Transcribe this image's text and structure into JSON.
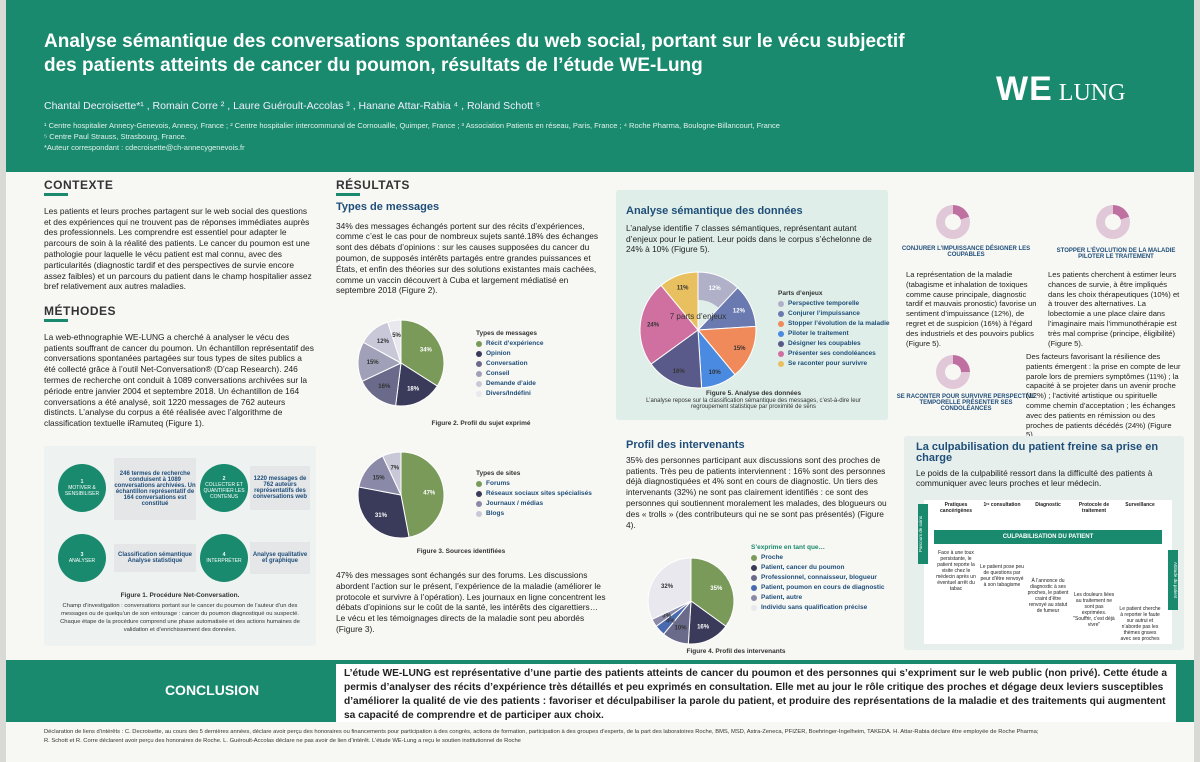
{
  "header": {
    "title_line1": "Analyse sémantique des conversations spontanées du web social, portant sur le vécu subjectif",
    "title_line2": "des patients atteints de cancer du poumon, résultats de l’étude WE-Lung",
    "authors": "Chantal Decroisette*¹ , Romain Corre ² , Laure Guéroult-Accolas ³ , Hanane Attar-Rabia ⁴ , Roland Schott ⁵",
    "affil1": "¹ Centre hospitalier Annecy-Genevois, Annecy, France ; ² Centre hospitalier intercommunal de Cornouaille, Quimper, France ; ³ Association Patients en réseau, Paris, France ; ⁴ Roche Pharma, Boulogne-Billancourt, France",
    "affil2": "⁵ Centre Paul Strauss, Strasbourg, France.",
    "affil3": "*Auteur correspondant : cdecroisette@ch-annecygenevois.fr",
    "logo_we": "WE",
    "logo_lung": "LUNG"
  },
  "contexte": {
    "heading": "CONTEXTE",
    "text": "Les patients et leurs proches partagent sur le web social des questions et des expériences qui ne trouvent pas de réponses immédiates auprès des professionnels. Les comprendre est essentiel pour adapter le parcours de soin à la réalité des patients. Le cancer du poumon est une pathologie pour laquelle le vécu patient est mal connu, avec des particularités (diagnostic tardif et des perspectives de survie encore assez faibles) et un parcours du patient dans le champ hospitalier assez bref relativement aux autres maladies."
  },
  "methodes": {
    "heading": "MÉTHODES",
    "text": "La web-ethnographie WE-LUNG a cherché à analyser le vécu des patients souffrant de cancer du poumon. Un échantillon représentatif des conversations spontanées partagées sur tous types de sites publics a été collecté grâce à l’outil Net-Conversation® (D’cap Research). 246 termes de recherche ont conduit à 1089 conversations archivées sur la période entre janvier 2004 et septembre 2018. Un échantillon de 164 conversations a été analysé, soit 1220 messages de 762 auteurs distincts. L’analyse du corpus a été réalisée avec l’algorithme de classification textuelle iRamuteq (Figure 1).",
    "step1": "1",
    "step1_label": "MOTIVER & SENSIBILISER",
    "step1_box": "246 termes de recherche conduisent à 1089 conversations archivées. Un échantillon représentatif de 164 conversations est constitué",
    "step2": "2",
    "step2_label": "COLLECTER ET QUANTIFIER LES CONTENUS",
    "step2_box": "1220 messages de 762 auteurs représentatifs des conversations web",
    "step3": "3",
    "step3_label": "ANALYSER",
    "step3_box": "Classification sémantique Analyse statistique",
    "step4": "4",
    "step4_label": "INTERPRÉTER",
    "step4_box": "Analyse qualitative et graphique",
    "fig1_title": "Figure 1. Procédure Net-Conversation.",
    "fig1_text": "Champ d’investigation : conversations portant sur le cancer du poumon de l’auteur d’un des messages ou de quelqu’un de son entourage : cancer du poumon diagnostiqué ou suspecté. Chaque étape de la procédure comprend une phase automatisée et des actions humaines de validation et d’enrichissement des données."
  },
  "resultats": {
    "heading": "RÉSULTATS",
    "types_heading": "Types de messages",
    "types_text": "34% des messages échangés portent sur des récits d’expériences, comme c’est le cas pour de nombreux sujets santé.18% des échanges sont des débats d’opinions : sur les causes supposées du cancer du poumon, de supposés intérêts partagés entre grandes puissances et États, et enfin des théories sur des solutions existantes mais cachées, comme un vaccin découvert à Cuba et largement médiatisé en septembre 2018 (Figure 2).",
    "fig2_caption": "Figure 2. Profil du sujet exprimé",
    "fig3_caption": "Figure 3. Sources identifiées",
    "forums_text": "47% des messages sont échangés sur des forums. Les discussions abordent l’action sur le présent, l’expérience de la maladie (améliorer le protocole et survivre à l’opération). Les journaux en ligne concentrent les débats d’opinions sur le coût de la santé, les intérêts des cigarettiers… Le vécu et les témoignages directs de la maladie sont peu abordés (Figure 3)."
  },
  "analyse": {
    "heading": "Analyse sémantique des données",
    "text": "L’analyse identifie 7 classes sémantiques, représentant autant d’enjeux pour le patient. Leur poids dans le corpus s’échelonne de 24% à 10% (Figure 5).",
    "center": "7 parts d’enjeux",
    "legend_title": "Parts d’enjeux",
    "fig5_caption": "Figure 5. Analyse des données",
    "fig5_text": "L’analyse repose sur la classification sémantique des messages, c’est-à-dire leur regroupement statistique par proximité de sens"
  },
  "profil": {
    "heading": "Profil des intervenants",
    "text": "35% des personnes participant aux discussions sont des proches de patients. Très peu de patients interviennent : 16% sont des personnes déjà diagnostiquées et 4% sont en cours de diagnostic. Un tiers des intervenants (32%) ne sont pas clairement identifiés : ce sont des personnes qui soutiennent moralement les malades, des blogueurs ou des « trolls » (des contributeurs qui ne se sont pas présentés) (Figure 4).",
    "legend_title": "S’exprime en tant que…",
    "fig4_caption": "Figure 4. Profil des intervenants"
  },
  "themes": {
    "t1": "CONJURER L’IMPUISSANCE DÉSIGNER LES COUPABLES",
    "t1_text": "La représentation de la maladie (tabagisme et inhalation de toxiques comme cause principale, diagnostic tardif et mauvais pronostic) favorise un sentiment d’impuissance (12%), de regret et de suspicion (16%) à l’égard des industriels et des pouvoirs publics (Figure 5).",
    "t2": "STOPPER L’ÉVOLUTION DE LA MALADIE PILOTER LE TRAITEMENT",
    "t2_text": "Les patients cherchent à estimer leurs chances de survie, à être impliqués dans les choix thérapeutiques (10%) et à trouver des alternatives. La lobectomie a une place claire dans l’imaginaire mais l’immunothérapie est très mal comprise (principe, éligibilité) (Figure 5).",
    "t3": "SE RACONTER POUR SURVIVRE PERSPECTIVE TEMPORELLE PRÉSENTER SES CONDOLÉANCES",
    "t3_text": "Des facteurs favorisant la résilience des patients émergent : la prise en compte de leur parole lors de premiers symptômes (11%) ; la capacité à se projeter dans un avenir proche (12%) ; l’activité artistique ou spirituelle comme chemin d’acceptation ; les échanges avec des patients en rémission ou des proches de patients décédés (24%) (Figure 5)."
  },
  "culpa": {
    "heading": "La culpabilisation du patient freine sa prise en charge",
    "text": "Le poids de la culpabilité ressort dans la difficulté des patients à communiquer avec leurs proches et leur médecin.",
    "side_left": "Parcours de soins",
    "side_right": "Attitude du patient",
    "band": "CULPABILISATION DU PATIENT",
    "steps": [
      "Pratiques cancérigènes",
      "1ʳᵉ consultation",
      "Diagnostic",
      "Protocole de traitement",
      "Surveillance"
    ],
    "cells": [
      "Face à une toux persistante, le patient reporte la visite chez le médecin après un éventuel arrêt du tabac",
      "Le patient pose peu de questions par peur d’être renvoyé à son tabagisme",
      "À l’annonce du diagnostic à ses proches, le patient craint d’être renvoyé au statut de fumeur",
      "Les douleurs liées au traitement ne sont pas exprimées. \"Souffrir, c’est déjà vivre\"",
      "Le patient cherche à reporter le faute sur autrui et n’aborde pas les thèmes graves avec ses proches"
    ]
  },
  "conclusion": {
    "label": "CONCLUSION",
    "text": "L’étude WE-LUNG est représentative d’une partie des patients atteints de cancer du poumon et des personnes qui s’expriment sur le web public (non privé). Cette étude a permis d’analyser des récits d’expérience très détaillés et peu exprimés en consultation. Elle met au jour le rôle critique des proches et dégage deux leviers susceptibles d’améliorer la qualité de vie des patients : favoriser et déculpabiliser la parole du patient, et produire des représentations de la maladie et des traitements qui augmentent sa capacité de comprendre et de participer aux choix."
  },
  "footer": {
    "line1": "Déclaration de liens d’intérêts : C. Decroisette, au cours des 5 dernières années, déclare avoir perçu des honoraires ou financements pour participation à des congrès, actions de formation, participation à des groupes d’experts, de la part des laboratoires Roche, BMS, MSD, Astra-Zeneca, PFIZER, Boehringer-Ingelheim, TAKEDA. H. Attar-Rabia déclare être employée de Roche Pharma;",
    "line2": "R. Schott et R. Corre déclarent avoir perçu des honoraires de Roche. L. Guéroult-Accolas déclare ne pas avoir de lien d’intérêt. L’étude WE-Lung a reçu le soutien institutionnel de Roche"
  },
  "chart_data": [
    {
      "type": "pie",
      "id": "fig2",
      "title": "Figure 2. Profil du sujet exprimé",
      "legend_title": "Types de messages",
      "categories": [
        "Récit d’expérience",
        "Opinion",
        "Conversation",
        "Conseil",
        "Demande d’aide",
        "Divers/Indéfini"
      ],
      "values": [
        34,
        18,
        16,
        15,
        12,
        5
      ],
      "colors": [
        "#7a9a5a",
        "#3a3a5a",
        "#6a6a8a",
        "#a0a0b8",
        "#c8c8d8",
        "#e8e8ee"
      ]
    },
    {
      "type": "pie",
      "id": "fig3",
      "title": "Figure 3. Sources identifiées",
      "legend_title": "Types de sites",
      "categories": [
        "Forums",
        "Réseaux sociaux sites spécialisés",
        "Journaux / médias",
        "Blogs"
      ],
      "values": [
        47,
        31,
        15,
        7
      ],
      "colors": [
        "#7a9a5a",
        "#3a3a5a",
        "#8a8aa8",
        "#c8c8d8"
      ]
    },
    {
      "type": "pie",
      "id": "fig5",
      "title": "Figure 5. Analyse des données",
      "legend_title": "Parts d’enjeux",
      "categories": [
        "Perspective temporelle",
        "Conjurer l’impuissance",
        "Stopper l’évolution de la maladie",
        "Piloter le traitement",
        "Désigner les coupables",
        "Présenter ses condoléances",
        "Se raconter pour survivre"
      ],
      "values": [
        12,
        12,
        15,
        10,
        16,
        24,
        11
      ],
      "colors": [
        "#b0b0c8",
        "#6a7ab0",
        "#f08a5a",
        "#4a8ae0",
        "#5a5a8a",
        "#d070a0",
        "#e8c060"
      ]
    },
    {
      "type": "pie",
      "id": "fig4",
      "title": "Figure 4. Profil des intervenants",
      "legend_title": "S’exprime en tant que…",
      "categories": [
        "Proche",
        "Patient, cancer du poumon",
        "Professionnel, connaisseur, blogueur",
        "Patient, poumon en cours de diagnostic",
        "Patient, autre",
        "Individu sans qualification précise"
      ],
      "values": [
        35,
        16,
        10,
        4,
        3,
        32
      ],
      "colors": [
        "#7a9a5a",
        "#3a3a5a",
        "#6a6a8a",
        "#4a6ab0",
        "#8a8aa8",
        "#e8e8ee"
      ]
    }
  ]
}
